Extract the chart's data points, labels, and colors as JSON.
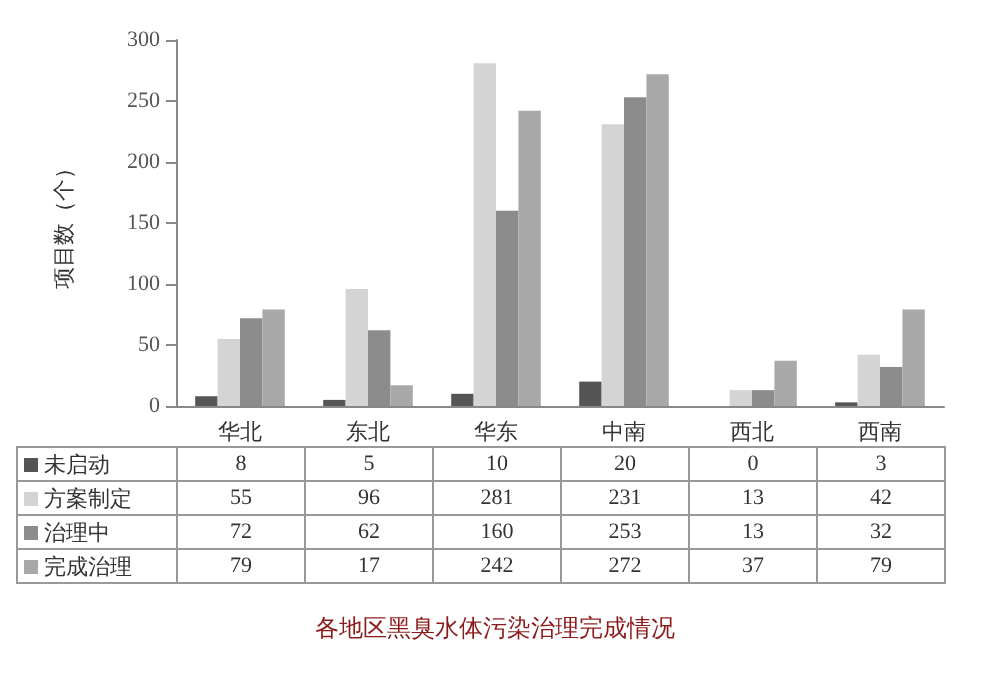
{
  "chart_data": {
    "type": "bar",
    "title": "各地区黑臭水体污染治理完成情况",
    "ylabel": "项目数（个）",
    "categories": [
      "华北",
      "东北",
      "华东",
      "中南",
      "西北",
      "西南"
    ],
    "series": [
      {
        "name": "未启动",
        "color": "#555555",
        "values": [
          8,
          5,
          10,
          20,
          0,
          3
        ]
      },
      {
        "name": "方案制定",
        "color": "#d4d4d4",
        "values": [
          55,
          96,
          281,
          231,
          13,
          42
        ]
      },
      {
        "name": "治理中",
        "color": "#8c8c8c",
        "values": [
          72,
          62,
          160,
          253,
          13,
          32
        ]
      },
      {
        "name": "完成治理",
        "color": "#a8a8a8",
        "values": [
          79,
          17,
          242,
          272,
          37,
          79
        ]
      }
    ],
    "ylim": [
      0,
      300
    ],
    "yticks": [
      0,
      50,
      100,
      150,
      200,
      250,
      300
    ],
    "data_labels": true,
    "grid": false,
    "legend": "bottom left"
  }
}
